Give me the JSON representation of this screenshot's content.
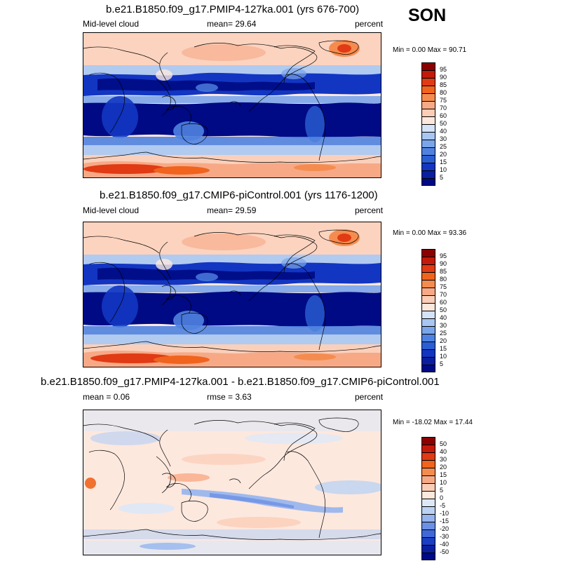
{
  "season": "SON",
  "panels": [
    {
      "title": "b.e21.B1850.f09_g17.PMIP4-127ka.001 (yrs 676-700)",
      "variable": "Mid-level cloud",
      "stat": "mean=  29.64",
      "units": "percent",
      "minmax": "Min =   0.00 Max =  90.71",
      "kind": "abs"
    },
    {
      "title": "b.e21.B1850.f09_g17.CMIP6-piControl.001 (yrs 1176-1200)",
      "variable": "Mid-level cloud",
      "stat": "mean=  29.59",
      "units": "percent",
      "minmax": "Min =   0.00 Max =  93.36",
      "kind": "abs"
    },
    {
      "title": "b.e21.B1850.f09_g17.PMIP4-127ka.001 - b.e21.B1850.f09_g17.CMIP6-piControl.001",
      "variable": "mean =   0.06",
      "stat": "rmse =   3.63",
      "units": "percent",
      "minmax": "Min = -18.02 Max =  17.44",
      "kind": "diff"
    }
  ],
  "colorbars": {
    "abs": {
      "labels": [
        "95",
        "90",
        "85",
        "80",
        "75",
        "70",
        "60",
        "50",
        "40",
        "30",
        "25",
        "20",
        "15",
        "10",
        "5"
      ],
      "colors": [
        "#8b0000",
        "#c41a0a",
        "#e03b14",
        "#f0641e",
        "#f58c4f",
        "#f7a986",
        "#fbcdb7",
        "#fde8de",
        "#d4e3f7",
        "#a9c6f2",
        "#7aa5ea",
        "#4f82e0",
        "#2a5fd4",
        "#1236c2",
        "#0a1fa0",
        "#000a84"
      ]
    },
    "diff": {
      "labels": [
        "50",
        "40",
        "30",
        "20",
        "15",
        "10",
        "5",
        "0",
        "-5",
        "-10",
        "-15",
        "-20",
        "-30",
        "-40",
        "-50"
      ],
      "colors": [
        "#8b0000",
        "#c41a0a",
        "#e03b14",
        "#f0641e",
        "#f58c4f",
        "#f7a986",
        "#fbcdb7",
        "#fde8de",
        "#dde8f7",
        "#bcd2f3",
        "#95b4ee",
        "#6b90e4",
        "#3f69d8",
        "#1a3fc4",
        "#0a1fa0",
        "#000a84"
      ]
    }
  }
}
